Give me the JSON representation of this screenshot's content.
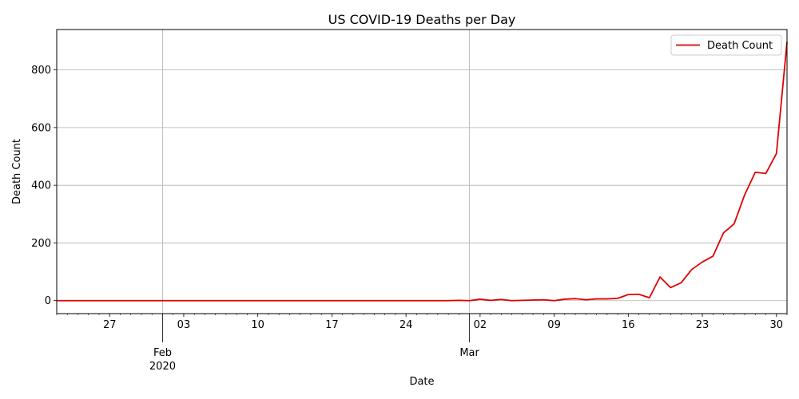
{
  "chart_data": {
    "type": "line",
    "title": "US COVID-19 Deaths per Day",
    "xlabel": "Date",
    "ylabel": "Death Count",
    "x_start": "2020-01-22",
    "x_end": "2020-03-31",
    "xlim": [
      "2020-01-22",
      "2020-03-31"
    ],
    "ylim": [
      -45,
      940
    ],
    "grid": true,
    "legend_position": "top-right",
    "line_color": "#e00000",
    "y_ticks": [
      0,
      200,
      400,
      600,
      800
    ],
    "x_major_ticks": [
      {
        "date": "2020-02-01",
        "label": "Feb",
        "sublabel": "2020"
      },
      {
        "date": "2020-03-01",
        "label": "Mar",
        "sublabel": ""
      }
    ],
    "x_minor_labels": [
      {
        "date": "2020-01-27",
        "label": "27"
      },
      {
        "date": "2020-02-03",
        "label": "03"
      },
      {
        "date": "2020-02-10",
        "label": "10"
      },
      {
        "date": "2020-02-17",
        "label": "17"
      },
      {
        "date": "2020-02-24",
        "label": "24"
      },
      {
        "date": "2020-03-02",
        "label": "02"
      },
      {
        "date": "2020-03-09",
        "label": "09"
      },
      {
        "date": "2020-03-16",
        "label": "16"
      },
      {
        "date": "2020-03-23",
        "label": "23"
      },
      {
        "date": "2020-03-30",
        "label": "30"
      }
    ],
    "series": [
      {
        "name": "Death Count",
        "values": [
          0,
          0,
          0,
          0,
          0,
          0,
          0,
          0,
          0,
          0,
          0,
          0,
          0,
          0,
          0,
          0,
          0,
          0,
          0,
          0,
          0,
          0,
          0,
          0,
          0,
          0,
          0,
          0,
          0,
          0,
          0,
          0,
          0,
          0,
          0,
          0,
          0,
          0,
          1,
          0,
          5,
          1,
          4,
          0,
          1,
          2,
          3,
          0,
          5,
          7,
          3,
          6,
          6,
          8,
          21,
          22,
          10,
          82,
          45,
          62,
          108,
          134,
          154,
          235,
          266,
          367,
          445,
          441,
          510,
          897
        ]
      }
    ]
  }
}
